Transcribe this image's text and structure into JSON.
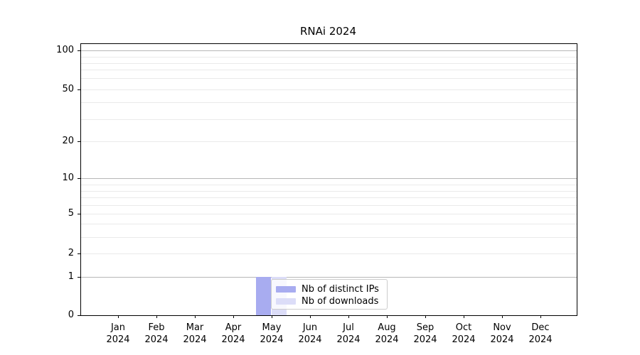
{
  "figure": {
    "background": "#ffffff"
  },
  "chart_data": {
    "type": "bar",
    "title": "RNAi 2024",
    "xlabel": "",
    "ylabel": "",
    "categories": [
      {
        "month": "Jan",
        "year": "2024"
      },
      {
        "month": "Feb",
        "year": "2024"
      },
      {
        "month": "Mar",
        "year": "2024"
      },
      {
        "month": "Apr",
        "year": "2024"
      },
      {
        "month": "May",
        "year": "2024"
      },
      {
        "month": "Jun",
        "year": "2024"
      },
      {
        "month": "Jul",
        "year": "2024"
      },
      {
        "month": "Aug",
        "year": "2024"
      },
      {
        "month": "Sep",
        "year": "2024"
      },
      {
        "month": "Oct",
        "year": "2024"
      },
      {
        "month": "Nov",
        "year": "2024"
      },
      {
        "month": "Dec",
        "year": "2024"
      }
    ],
    "series": [
      {
        "name": "Nb of distinct IPs",
        "color": "#a8acf0",
        "values": [
          0,
          0,
          0,
          0,
          1,
          0,
          0,
          0,
          0,
          0,
          0,
          0
        ]
      },
      {
        "name": "Nb of downloads",
        "color": "#dcddf8",
        "values": [
          0,
          0,
          0,
          0,
          1,
          0,
          0,
          0,
          0,
          0,
          0,
          0
        ]
      }
    ],
    "yaxis": {
      "scale": "symlog",
      "tick_values": [
        0,
        1,
        2,
        5,
        10,
        20,
        50,
        100
      ],
      "tick_labels": [
        "0",
        "1",
        "2",
        "5",
        "10",
        "20",
        "50",
        "100"
      ],
      "minor_tick_values": [
        3,
        4,
        6,
        7,
        8,
        9,
        30,
        40,
        60,
        70,
        80,
        90
      ],
      "decade_values": [
        1,
        10,
        100
      ],
      "ylim": [
        0,
        112
      ]
    },
    "legend": {
      "position": "lower-center",
      "entries": [
        "Nb of distinct IPs",
        "Nb of downloads"
      ]
    },
    "grid": "both",
    "colors": {
      "grid_major": "#b7b7b7",
      "grid_minor": "#eaeaea",
      "spine": "#000000",
      "text": "#000000",
      "background": "#ffffff"
    }
  }
}
